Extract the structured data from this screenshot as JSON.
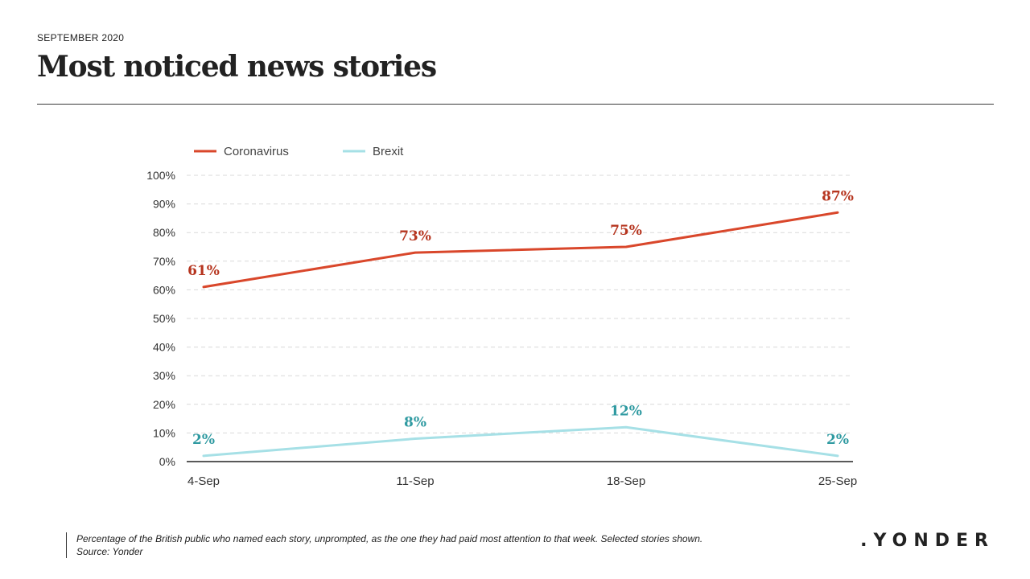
{
  "header": {
    "date": "SEPTEMBER 2020",
    "title": "Most noticed news stories"
  },
  "footer": {
    "note": "Percentage of the British public who named each story, unprompted, as the one they had paid most attention to that week. Selected stories shown.",
    "source": "Source: Yonder",
    "logo": ".YONDER"
  },
  "chart_data": {
    "type": "line",
    "categories": [
      "4-Sep",
      "11-Sep",
      "18-Sep",
      "25-Sep"
    ],
    "ylim": [
      0,
      100
    ],
    "yticks": [
      0,
      10,
      20,
      30,
      40,
      50,
      60,
      70,
      80,
      90,
      100
    ],
    "ytick_labels": [
      "0%",
      "10%",
      "20%",
      "30%",
      "40%",
      "50%",
      "60%",
      "70%",
      "80%",
      "90%",
      "100%"
    ],
    "grid": true,
    "legend_position": "top-left",
    "series": [
      {
        "name": "Coronavirus",
        "color": "#d9472b",
        "label_color": "#b6351f",
        "values": [
          61,
          73,
          75,
          87
        ],
        "data_labels": [
          "61%",
          "73%",
          "75%",
          "87%"
        ]
      },
      {
        "name": "Brexit",
        "color": "#a6e0e6",
        "label_color": "#2f9aa1",
        "values": [
          2,
          8,
          12,
          2
        ],
        "data_labels": [
          "2%",
          "8%",
          "12%",
          "2%"
        ]
      }
    ]
  }
}
